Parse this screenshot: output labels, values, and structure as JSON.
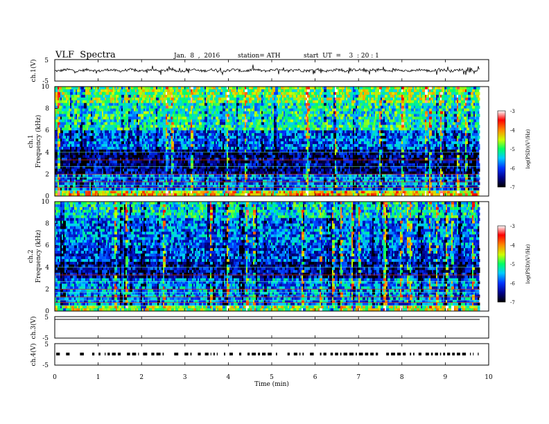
{
  "header": {
    "title": "VLF  Spectra",
    "date": "Jan.  8  ,  2016",
    "station": "station= ATH",
    "start": "start  UT  =    3  : 20 : 1"
  },
  "chart_data": [
    {
      "type": "line",
      "name": "ch1-waveform",
      "ylabel": "ch.1(V)",
      "ylim": [
        -5,
        5
      ],
      "yticks": [
        "5",
        "-5"
      ],
      "description_values": {
        "mean": 0,
        "amplitude": 1
      }
    },
    {
      "type": "heatmap",
      "name": "ch1-spectrogram",
      "ylabel": "ch.1\nFrequency  (kHz)",
      "ylabel_line1": "ch.1",
      "ylabel_line2": "Frequency  (kHz)",
      "ylim": [
        0,
        10
      ],
      "yticks": [
        "0",
        "2",
        "4",
        "6",
        "8",
        "10"
      ],
      "colorbar": {
        "label": "log(PSD)(V²/Hz)",
        "range": [
          -7,
          -3
        ],
        "ticks": [
          "-3",
          "-4",
          "-5",
          "-6",
          "-7"
        ]
      }
    },
    {
      "type": "heatmap",
      "name": "ch2-spectrogram",
      "ylabel_line1": "ch.2",
      "ylabel_line2": "Frequency  (kHz)",
      "ylim": [
        0,
        10
      ],
      "yticks": [
        "0",
        "2",
        "4",
        "6",
        "8",
        "10"
      ],
      "colorbar": {
        "label": "log(PSD)(V²/Hz)",
        "range": [
          -7,
          -3
        ],
        "ticks": [
          "-3",
          "-4",
          "-5",
          "-6",
          "-7"
        ]
      }
    },
    {
      "type": "line",
      "name": "ch3-waveform",
      "ylabel": "ch.3(V)",
      "ylim": [
        -5,
        5
      ],
      "yticks": [
        "5",
        "-5"
      ]
    },
    {
      "type": "line",
      "name": "ch4-waveform",
      "ylabel": "ch.4(V)",
      "ylim": [
        -5,
        5
      ],
      "yticks": [
        "5",
        "-5"
      ]
    }
  ],
  "xaxis": {
    "label": "Time  (min)",
    "range": [
      0,
      10
    ],
    "ticks": [
      "0",
      "1",
      "2",
      "3",
      "4",
      "5",
      "6",
      "7",
      "8",
      "9",
      "10"
    ],
    "data_end": 9.8
  }
}
